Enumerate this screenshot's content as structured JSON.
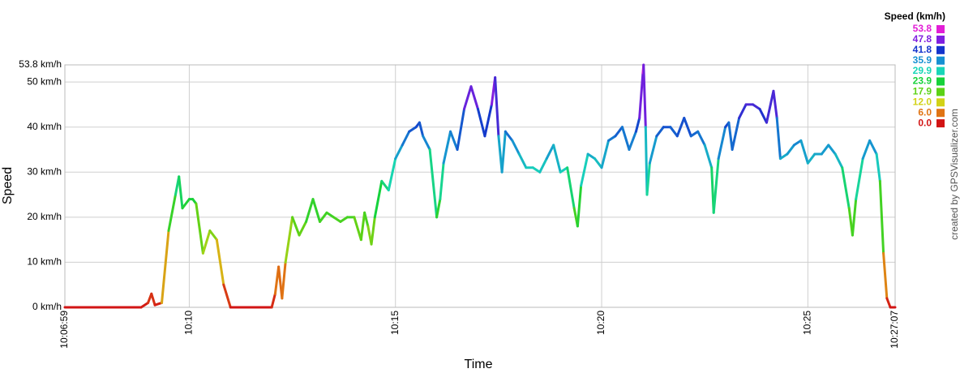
{
  "chart_data": {
    "type": "line",
    "x_label": "Time",
    "y_label": "Speed",
    "legend_title": "Speed (km/h)",
    "credit": "created by GPSVisualizer.com",
    "xlim": [
      "10:06:59",
      "10:27:07"
    ],
    "xticks": [
      "10:06:59",
      "10:10",
      "10:15",
      "10:20",
      "10:25",
      "10:27:07"
    ],
    "ylim": [
      0,
      53.8
    ],
    "yticks": [
      {
        "value": 0,
        "label": "0 km/h"
      },
      {
        "value": 10,
        "label": "10 km/h"
      },
      {
        "value": 20,
        "label": "20 km/h"
      },
      {
        "value": 30,
        "label": "30 km/h"
      },
      {
        "value": 40,
        "label": "40 km/h"
      },
      {
        "value": 50,
        "label": "50 km/h"
      },
      {
        "value": 53.8,
        "label": "53.8 km/h"
      }
    ],
    "grid": true,
    "color_scale": [
      {
        "value": 53.8,
        "color": "#e21ed6"
      },
      {
        "value": 47.8,
        "color": "#7f1ee0"
      },
      {
        "value": 41.8,
        "color": "#1434cc"
      },
      {
        "value": 35.9,
        "color": "#1690d2"
      },
      {
        "value": 29.9,
        "color": "#18d6b8"
      },
      {
        "value": 23.9,
        "color": "#16d23a"
      },
      {
        "value": 17.9,
        "color": "#5cd216"
      },
      {
        "value": 12.0,
        "label": "12.0",
        "color": "#d2d216"
      },
      {
        "value": 6.0,
        "label": "6.0",
        "color": "#e07414"
      },
      {
        "value": 0.0,
        "label": "0.0",
        "color": "#d21414"
      }
    ],
    "x": [
      "10:06:59",
      "10:08:40",
      "10:08:50",
      "10:09:00",
      "10:09:05",
      "10:09:10",
      "10:09:20",
      "10:09:30",
      "10:09:40",
      "10:09:45",
      "10:09:50",
      "10:10:00",
      "10:10:05",
      "10:10:10",
      "10:10:20",
      "10:10:30",
      "10:10:40",
      "10:10:50",
      "10:11:00",
      "10:12:00",
      "10:12:05",
      "10:12:10",
      "10:12:15",
      "10:12:20",
      "10:12:30",
      "10:12:40",
      "10:12:50",
      "10:13:00",
      "10:13:10",
      "10:13:20",
      "10:13:30",
      "10:13:40",
      "10:13:50",
      "10:14:00",
      "10:14:10",
      "10:14:15",
      "10:14:20",
      "10:14:25",
      "10:14:30",
      "10:14:40",
      "10:14:50",
      "10:15:00",
      "10:15:10",
      "10:15:20",
      "10:15:30",
      "10:15:35",
      "10:15:40",
      "10:15:50",
      "10:16:00",
      "10:16:05",
      "10:16:10",
      "10:16:20",
      "10:16:30",
      "10:16:40",
      "10:16:50",
      "10:17:00",
      "10:17:10",
      "10:17:20",
      "10:17:25",
      "10:17:30",
      "10:17:35",
      "10:17:40",
      "10:17:50",
      "10:18:00",
      "10:18:10",
      "10:18:20",
      "10:18:30",
      "10:18:40",
      "10:18:50",
      "10:19:00",
      "10:19:10",
      "10:19:20",
      "10:19:25",
      "10:19:30",
      "10:19:40",
      "10:19:50",
      "10:20:00",
      "10:20:10",
      "10:20:20",
      "10:20:30",
      "10:20:40",
      "10:20:50",
      "10:20:55",
      "10:21:00",
      "10:21:01",
      "10:21:04",
      "10:21:06",
      "10:21:10",
      "10:21:20",
      "10:21:30",
      "10:21:40",
      "10:21:50",
      "10:22:00",
      "10:22:10",
      "10:22:20",
      "10:22:30",
      "10:22:40",
      "10:22:43",
      "10:22:50",
      "10:23:00",
      "10:23:05",
      "10:23:10",
      "10:23:20",
      "10:23:30",
      "10:23:40",
      "10:23:50",
      "10:24:00",
      "10:24:10",
      "10:24:15",
      "10:24:20",
      "10:24:30",
      "10:24:40",
      "10:24:50",
      "10:25:00",
      "10:25:10",
      "10:25:20",
      "10:25:30",
      "10:25:40",
      "10:25:50",
      "10:26:00",
      "10:26:05",
      "10:26:10",
      "10:26:20",
      "10:26:30",
      "10:26:40",
      "10:26:45",
      "10:26:50",
      "10:26:55",
      "10:27:00",
      "10:27:07"
    ],
    "values": [
      0,
      0,
      0,
      1,
      3,
      0.5,
      1,
      17,
      25,
      29,
      22,
      24,
      24,
      23,
      12,
      17,
      15,
      5,
      0,
      0,
      3,
      9,
      2,
      10,
      20,
      16,
      19,
      24,
      19,
      21,
      20,
      19,
      20,
      20,
      15,
      21,
      18,
      14,
      20,
      28,
      26,
      33,
      36,
      39,
      40,
      41,
      38,
      35,
      20,
      24,
      32,
      39,
      35,
      44,
      49,
      44,
      38,
      45,
      51,
      38,
      30,
      39,
      37,
      34,
      31,
      31,
      30,
      33,
      36,
      30,
      31,
      22,
      18,
      27,
      34,
      33,
      31,
      37,
      38,
      40,
      35,
      39,
      42,
      52,
      53.8,
      40,
      25,
      32,
      38,
      40,
      40,
      38,
      42,
      38,
      39,
      36,
      31,
      21,
      33,
      40,
      41,
      35,
      42,
      45,
      45,
      44,
      41,
      48,
      42,
      33,
      34,
      36,
      37,
      32,
      34,
      34,
      36,
      34,
      31,
      22,
      16,
      24,
      33,
      37,
      34,
      28,
      12,
      2,
      0,
      0
    ]
  }
}
